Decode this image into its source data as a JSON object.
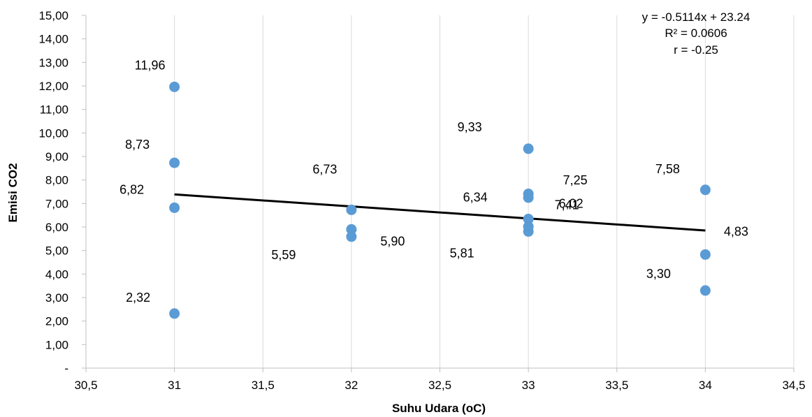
{
  "chart_data": {
    "type": "scatter",
    "title": "",
    "xlabel": "Suhu Udara (oC)",
    "ylabel": "Emisi CO2",
    "xlim": [
      30.5,
      34.5
    ],
    "ylim": [
      0,
      15
    ],
    "x_ticks": [
      "30,5",
      "31",
      "31,5",
      "32",
      "32,5",
      "33",
      "33,5",
      "34",
      "34,5"
    ],
    "y_ticks": [
      "-",
      "1,00",
      "2,00",
      "3,00",
      "4,00",
      "5,00",
      "6,00",
      "7,00",
      "8,00",
      "9,00",
      "10,00",
      "11,00",
      "12,00",
      "13,00",
      "14,00",
      "15,00"
    ],
    "grid": {
      "vertical": true,
      "horizontal": false
    },
    "marker_color": "#5b9bd5",
    "trendline_color": "#000000",
    "series": [
      {
        "points": [
          {
            "x": 31,
            "y": 11.96,
            "label": "11,96"
          },
          {
            "x": 31,
            "y": 8.73,
            "label": "8,73"
          },
          {
            "x": 31,
            "y": 6.82,
            "label": "6,82"
          },
          {
            "x": 31,
            "y": 2.32,
            "label": "2,32"
          },
          {
            "x": 32,
            "y": 6.73,
            "label": "6,73"
          },
          {
            "x": 32,
            "y": 5.9,
            "label": "5,90"
          },
          {
            "x": 32,
            "y": 5.59,
            "label": "5,59"
          },
          {
            "x": 33,
            "y": 9.33,
            "label": "9,33"
          },
          {
            "x": 33,
            "y": 7.41,
            "label": "7,41"
          },
          {
            "x": 33,
            "y": 7.25,
            "label": "7,25"
          },
          {
            "x": 33,
            "y": 6.34,
            "label": "6,34"
          },
          {
            "x": 33,
            "y": 6.02,
            "label": "6,02"
          },
          {
            "x": 33,
            "y": 5.81,
            "label": "5,81"
          },
          {
            "x": 34,
            "y": 7.58,
            "label": "7,58"
          },
          {
            "x": 34,
            "y": 4.83,
            "label": "4,83"
          },
          {
            "x": 34,
            "y": 3.3,
            "label": "3,30"
          }
        ]
      }
    ],
    "trendline": {
      "slope": -0.5114,
      "intercept": 23.24,
      "x_range": [
        31,
        34
      ]
    },
    "annotations": {
      "equation": "y = -0.5114x + 23.24",
      "r_squared": "R² = 0.0606",
      "r": "r = -0.25"
    }
  }
}
